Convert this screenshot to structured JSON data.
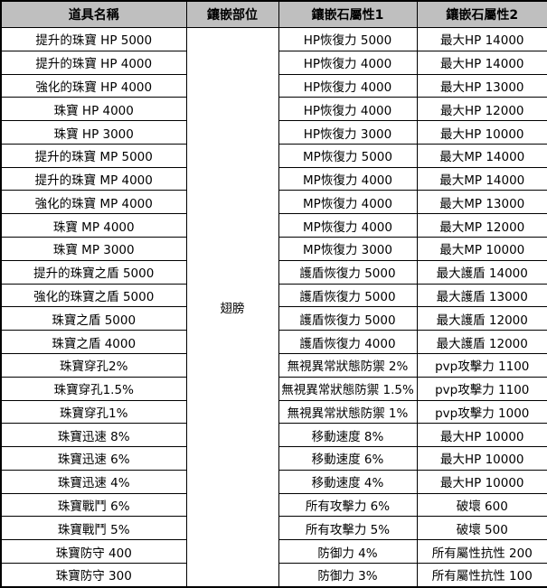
{
  "table": {
    "headers": [
      "道具名稱",
      "鑲嵌部位",
      "鑲嵌石屬性1",
      "鑲嵌石屬性2"
    ],
    "slot": "翅膀",
    "rows": [
      {
        "item": "提升的珠寶 HP 5000",
        "attr1": "HP恢復力 5000",
        "attr2": "最大HP 14000"
      },
      {
        "item": "提升的珠寶 HP 4000",
        "attr1": "HP恢復力 4000",
        "attr2": "最大HP 14000"
      },
      {
        "item": "強化的珠寶 HP 4000",
        "attr1": "HP恢復力 4000",
        "attr2": "最大HP 13000"
      },
      {
        "item": "珠寶 HP 4000",
        "attr1": "HP恢復力 4000",
        "attr2": "最大HP 12000"
      },
      {
        "item": "珠寶 HP 3000",
        "attr1": "HP恢復力 3000",
        "attr2": "最大HP 10000"
      },
      {
        "item": "提升的珠寶 MP 5000",
        "attr1": "MP恢復力 5000",
        "attr2": "最大MP 14000"
      },
      {
        "item": "提升的珠寶 MP 4000",
        "attr1": "MP恢復力 4000",
        "attr2": "最大MP 14000"
      },
      {
        "item": "強化的珠寶 MP 4000",
        "attr1": "MP恢復力 4000",
        "attr2": "最大MP 13000"
      },
      {
        "item": "珠寶 MP 4000",
        "attr1": "MP恢復力 4000",
        "attr2": "最大MP 12000"
      },
      {
        "item": "珠寶 MP 3000",
        "attr1": "MP恢復力 3000",
        "attr2": "最大MP 10000"
      },
      {
        "item": "提升的珠寶之盾 5000",
        "attr1": "護盾恢復力 5000",
        "attr2": "最大護盾 14000"
      },
      {
        "item": "強化的珠寶之盾 5000",
        "attr1": "護盾恢復力 5000",
        "attr2": "最大護盾 13000"
      },
      {
        "item": "珠寶之盾 5000",
        "attr1": "護盾恢復力 5000",
        "attr2": "最大護盾 12000"
      },
      {
        "item": "珠寶之盾 4000",
        "attr1": "護盾恢復力 4000",
        "attr2": "最大護盾 12000"
      },
      {
        "item": "珠寶穿孔2%",
        "attr1": "無視異常狀態防禦 2%",
        "attr2": "pvp攻擊力 1100"
      },
      {
        "item": "珠寶穿孔1.5%",
        "attr1": "無視異常狀態防禦 1.5%",
        "attr2": "pvp攻擊力 1100"
      },
      {
        "item": "珠寶穿孔1%",
        "attr1": "無視異常狀態防禦 1%",
        "attr2": "pvp攻擊力 1000"
      },
      {
        "item": "珠寶迅速 8%",
        "attr1": "移動速度 8%",
        "attr2": "最大HP 10000"
      },
      {
        "item": "珠寶迅速 6%",
        "attr1": "移動速度 6%",
        "attr2": "最大HP 10000"
      },
      {
        "item": "珠寶迅速 4%",
        "attr1": "移動速度 4%",
        "attr2": "最大HP 10000"
      },
      {
        "item": "珠寶戰鬥 6%",
        "attr1": "所有攻擊力 6%",
        "attr2": "破壞 600"
      },
      {
        "item": "珠寶戰鬥 5%",
        "attr1": "所有攻擊力 5%",
        "attr2": "破壞 500"
      },
      {
        "item": "珠寶防守 400",
        "attr1": "防御力 4%",
        "attr2": "所有屬性抗性 200"
      },
      {
        "item": "珠寶防守 300",
        "attr1": "防御力 3%",
        "attr2": "所有屬性抗性 100"
      }
    ]
  },
  "colors": {
    "header_bg": "#bfbfbf",
    "border": "#000000",
    "text": "#000000",
    "body_bg": "#ffffff"
  }
}
